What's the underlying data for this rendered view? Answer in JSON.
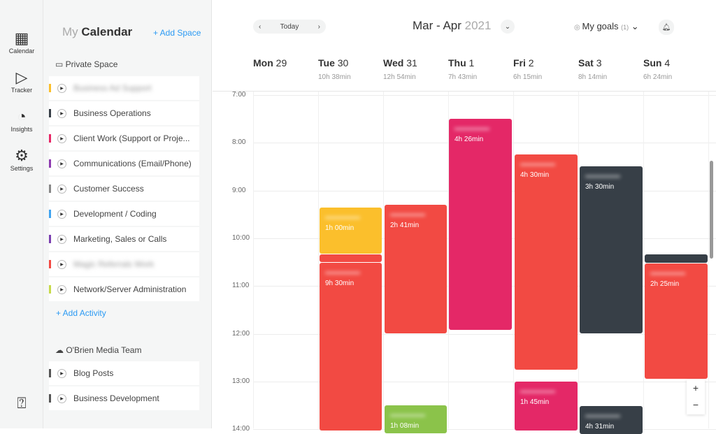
{
  "rail": [
    {
      "label": "Calendar",
      "icon": "calendar-icon"
    },
    {
      "label": "Tracker",
      "icon": "play-icon"
    },
    {
      "label": "Insights",
      "icon": "pie-chart-icon"
    },
    {
      "label": "Settings",
      "icon": "gear-icon"
    }
  ],
  "sidebar": {
    "title_my": "My",
    "title_cal": "Calendar",
    "add_space": "+   Add Space",
    "private_space": "Private Space",
    "private_items": [
      {
        "label": "Business Ad Support",
        "color": "#fbbf2c",
        "blurred": true
      },
      {
        "label": "Business Operations",
        "color": "#373f47"
      },
      {
        "label": "Client Work (Support or Proje...",
        "color": "#e72767"
      },
      {
        "label": "Communications (Email/Phone)",
        "color": "#8e3bb0"
      },
      {
        "label": "Customer Success",
        "color": "#888"
      },
      {
        "label": "Development / Coding",
        "color": "#41a4f0"
      },
      {
        "label": "Marketing, Sales or Calls",
        "color": "#7b3fb0"
      },
      {
        "label": "Magic Referrals Work",
        "color": "#f24a43",
        "blurred": true
      },
      {
        "label": "Network/Server Administration",
        "color": "#c7da4a"
      }
    ],
    "add_activity": "+   Add Activity",
    "team_space": "O'Brien Media Team",
    "team_items": [
      {
        "label": "Blog Posts",
        "color": "#555"
      },
      {
        "label": "Business Development",
        "color": "#555"
      }
    ]
  },
  "header": {
    "today": "Today",
    "month": "Mar - Apr",
    "year": "2021",
    "goals": "My goals",
    "goals_count": "(1)"
  },
  "days": [
    {
      "name": "Mon",
      "num": "29",
      "total": ""
    },
    {
      "name": "Tue",
      "num": "30",
      "total": "10h 38min"
    },
    {
      "name": "Wed",
      "num": "31",
      "total": "12h 54min"
    },
    {
      "name": "Thu",
      "num": "1",
      "total": "7h 43min"
    },
    {
      "name": "Fri",
      "num": "2",
      "total": "6h 15min"
    },
    {
      "name": "Sat",
      "num": "3",
      "total": "8h 14min"
    },
    {
      "name": "Sun",
      "num": "4",
      "total": "6h 24min"
    }
  ],
  "hours": [
    "7:00",
    "8:00",
    "9:00",
    "10:00",
    "11:00",
    "12:00",
    "13:00",
    "14:00"
  ],
  "events": {
    "tue1": "1h 00min",
    "tue2": "9h 30min",
    "wed1": "2h 41min",
    "wed2": "1h 08min",
    "thu1": "4h 26min",
    "fri1": "4h 30min",
    "fri2": "1h 45min",
    "sat1": "3h 30min",
    "sat2": "4h 31min",
    "sun1": "2h 25min"
  },
  "colors": {
    "red": "#f24a43",
    "pink": "#e42867",
    "yellow": "#fbbf2c",
    "dark": "#373f47",
    "green": "#8bc34a",
    "accent": "#2b9af3"
  },
  "zoom": {
    "plus": "+",
    "minus": "−"
  }
}
